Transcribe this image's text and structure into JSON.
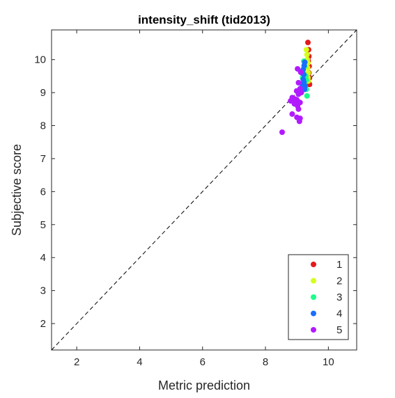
{
  "chart_data": {
    "type": "scatter",
    "title": "intensity_shift (tid2013)",
    "xlabel": "Metric prediction",
    "ylabel": "Subjective score",
    "xlim": [
      1.2,
      10.9
    ],
    "ylim": [
      1.2,
      10.9
    ],
    "xticks": [
      2,
      4,
      6,
      8,
      10
    ],
    "yticks": [
      2,
      3,
      4,
      5,
      6,
      7,
      8,
      9,
      10
    ],
    "grid": false,
    "reference_line": "identity (y = x), dashed black",
    "legend_position": "bottom-right",
    "series": [
      {
        "name": "1",
        "color": "#e41a1c",
        "points": [
          [
            9.35,
            10.52
          ],
          [
            9.37,
            10.3
          ],
          [
            9.38,
            10.1
          ],
          [
            9.36,
            9.95
          ],
          [
            9.39,
            9.8
          ],
          [
            9.38,
            9.6
          ],
          [
            9.4,
            9.45
          ],
          [
            9.37,
            9.3
          ],
          [
            9.4,
            9.25
          ],
          [
            9.35,
            10.0
          ],
          [
            9.33,
            9.85
          ]
        ]
      },
      {
        "name": "2",
        "color": "#d4ff1a",
        "points": [
          [
            9.3,
            10.3
          ],
          [
            9.32,
            10.15
          ],
          [
            9.33,
            10.0
          ],
          [
            9.35,
            9.9
          ],
          [
            9.34,
            9.75
          ],
          [
            9.36,
            9.6
          ],
          [
            9.35,
            9.45
          ],
          [
            9.33,
            9.55
          ],
          [
            9.36,
            9.35
          ]
        ]
      },
      {
        "name": "3",
        "color": "#1aff88",
        "points": [
          [
            9.22,
            9.95
          ],
          [
            9.25,
            9.8
          ],
          [
            9.2,
            9.6
          ],
          [
            9.28,
            9.5
          ],
          [
            9.18,
            9.45
          ],
          [
            9.3,
            9.38
          ],
          [
            9.23,
            9.3
          ],
          [
            9.26,
            9.2
          ],
          [
            9.3,
            9.1
          ],
          [
            9.32,
            8.9
          ]
        ]
      },
      {
        "name": "4",
        "color": "#1a6dff",
        "points": [
          [
            9.25,
            9.92
          ],
          [
            9.23,
            9.82
          ],
          [
            9.2,
            9.7
          ],
          [
            9.15,
            9.6
          ],
          [
            9.22,
            9.55
          ],
          [
            9.2,
            9.4
          ],
          [
            9.22,
            9.32
          ],
          [
            9.17,
            9.25
          ],
          [
            9.26,
            9.2
          ],
          [
            9.24,
            9.1
          ]
        ]
      },
      {
        "name": "5",
        "color": "#b21aff",
        "points": [
          [
            9.02,
            9.72
          ],
          [
            9.12,
            9.62
          ],
          [
            9.05,
            9.3
          ],
          [
            9.1,
            9.12
          ],
          [
            8.99,
            9.05
          ],
          [
            9.14,
            9.0
          ],
          [
            9.05,
            8.95
          ],
          [
            8.85,
            8.85
          ],
          [
            8.9,
            8.82
          ],
          [
            8.95,
            8.8
          ],
          [
            9.0,
            8.78
          ],
          [
            8.8,
            8.75
          ],
          [
            9.05,
            8.72
          ],
          [
            9.1,
            8.7
          ],
          [
            8.92,
            8.66
          ],
          [
            9.02,
            8.6
          ],
          [
            9.05,
            8.5
          ],
          [
            8.85,
            8.35
          ],
          [
            9.0,
            8.25
          ],
          [
            9.1,
            8.22
          ],
          [
            9.08,
            8.13
          ],
          [
            8.53,
            7.8
          ]
        ]
      }
    ]
  }
}
